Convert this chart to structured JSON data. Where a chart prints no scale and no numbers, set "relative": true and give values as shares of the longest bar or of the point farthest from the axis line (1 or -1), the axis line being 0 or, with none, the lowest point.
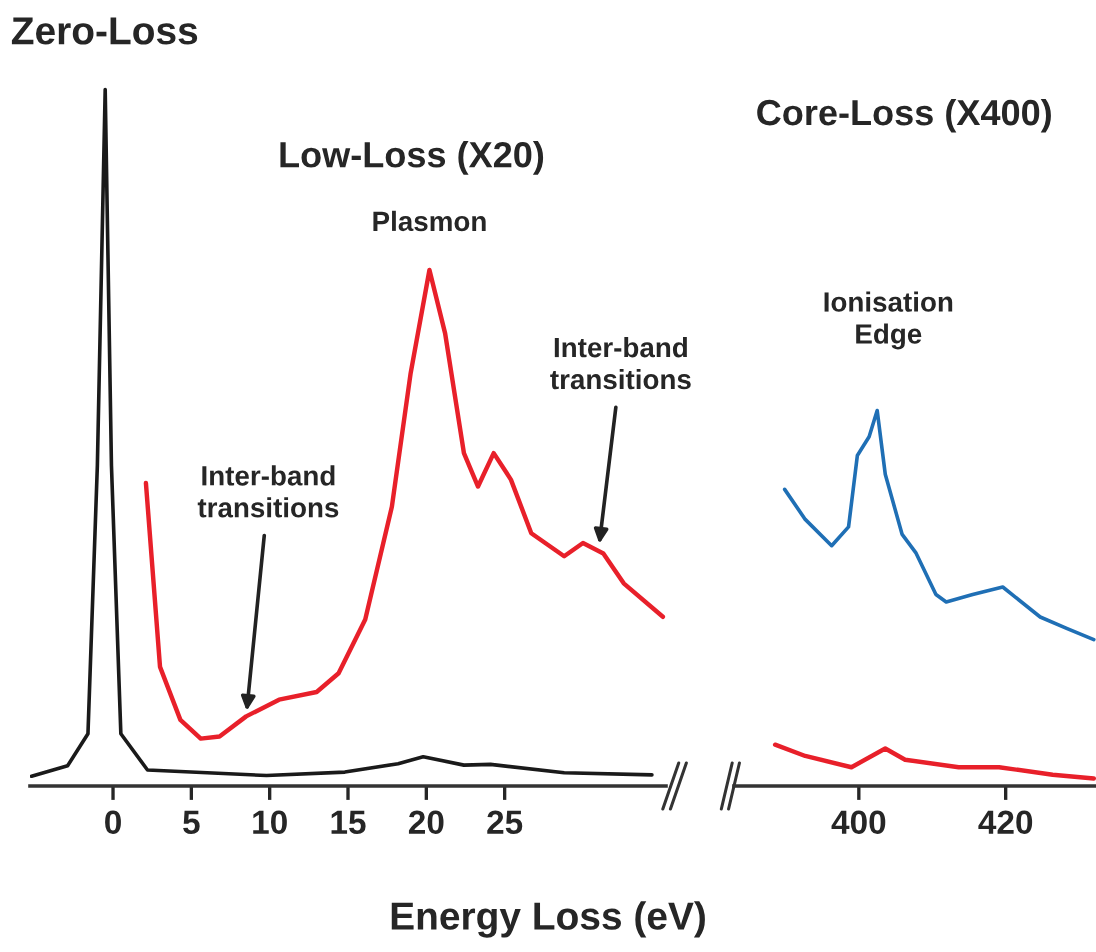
{
  "chart_data": [
    {
      "type": "line",
      "relative": true,
      "xlabel": "Energy Loss (eV)",
      "xlim": [
        -5.3,
        35.3
      ],
      "xticks": [
        0,
        5,
        10,
        15,
        20,
        25
      ],
      "series": [
        {
          "color": "#1a1a1a",
          "x": [
            -5.2,
            -2.9,
            -1.6,
            -1.0,
            -0.5,
            -0.1,
            0.5,
            2.2,
            9.8,
            14.8,
            18.2,
            19.8,
            22.4,
            24.1,
            28.8,
            34.4
          ],
          "values": [
            0.014,
            0.029,
            0.075,
            0.46,
            1.0,
            0.46,
            0.075,
            0.023,
            0.015,
            0.02,
            0.032,
            0.042,
            0.03,
            0.031,
            0.019,
            0.016
          ]
        },
        {
          "color": "#e8202a",
          "x": [
            2.1,
            3.0,
            4.3,
            5.6,
            6.8,
            8.5,
            10.6,
            13.0,
            14.4,
            16.1,
            17.8,
            19.0,
            20.2,
            21.2,
            22.4,
            23.3,
            24.3,
            25.4,
            26.7,
            28.8,
            30.0,
            31.3,
            32.6,
            35.1
          ],
          "values": [
            0.435,
            0.171,
            0.095,
            0.068,
            0.071,
            0.1,
            0.124,
            0.135,
            0.162,
            0.239,
            0.401,
            0.593,
            0.741,
            0.65,
            0.478,
            0.43,
            0.478,
            0.44,
            0.363,
            0.33,
            0.349,
            0.334,
            0.291,
            0.243
          ]
        }
      ],
      "annotations": [
        {
          "text": "Zero-Loss",
          "x": -0.5,
          "y": 1.0
        },
        "Low-Loss (X20)",
        {
          "text": "Plasmon",
          "x": 20.2,
          "y": 0.741
        },
        {
          "text": "Inter-band\ntransitions",
          "x": 8.5,
          "y": 0.1
        },
        {
          "text": "Inter-band\ntransitions",
          "x": 31.0,
          "y": 0.34
        }
      ]
    },
    {
      "type": "line",
      "relative": true,
      "xlim": [
        383,
        432.3
      ],
      "xticks": [
        400,
        420
      ],
      "series": [
        {
          "color": "#1f6fb5",
          "x": [
            389.9,
            392.7,
            396.3,
            398.6,
            399.8,
            401.4,
            402.5,
            403.6,
            405.9,
            407.8,
            410.5,
            411.9,
            415.5,
            419.6,
            424.7,
            428.3,
            432
          ],
          "values": [
            0.79,
            0.71,
            0.64,
            0.69,
            0.88,
            0.93,
            1.0,
            0.83,
            0.67,
            0.62,
            0.51,
            0.49,
            0.51,
            0.53,
            0.45,
            0.42,
            0.39
          ]
        },
        {
          "color": "#e8202a",
          "x": [
            388.6,
            392.7,
            399,
            403.6,
            406.3,
            413.6,
            419.1,
            426.4,
            432
          ],
          "values": [
            0.11,
            0.08,
            0.05,
            0.1,
            0.07,
            0.05,
            0.05,
            0.03,
            0.02
          ]
        }
      ],
      "annotations": [
        "Core-Loss (X400)",
        {
          "text": "Ionisation\nEdge",
          "x": 402.5,
          "y": 1.0
        }
      ]
    }
  ]
}
